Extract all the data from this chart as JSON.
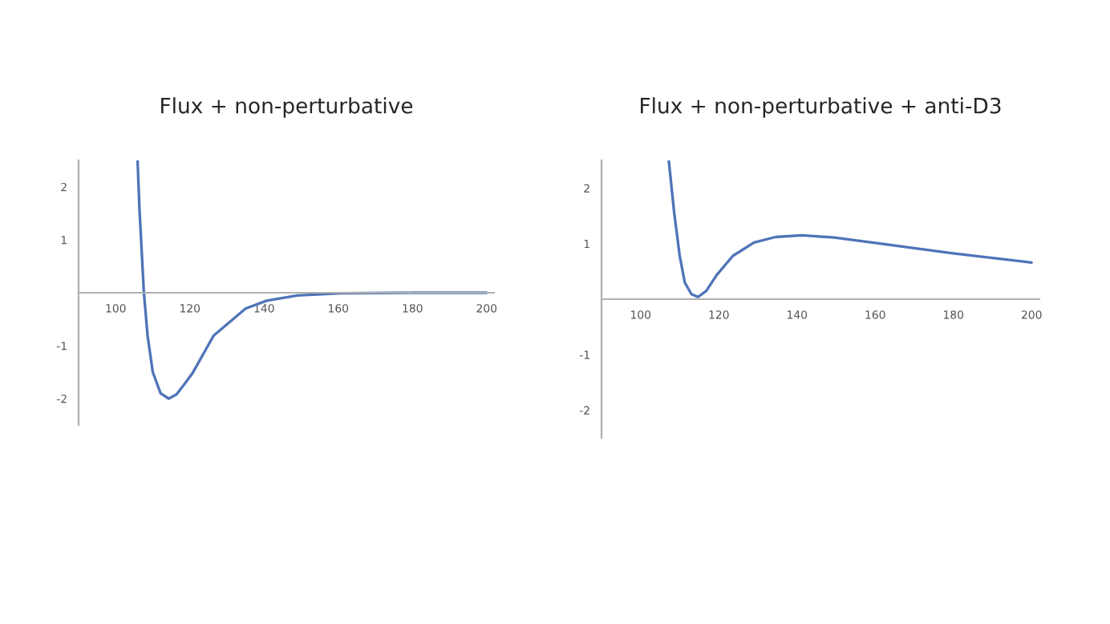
{
  "chart_data": [
    {
      "type": "line",
      "title": "Flux + non-perturbative",
      "xlim": [
        90,
        202
      ],
      "ylim": [
        -2.5,
        2.5
      ],
      "xticks": [
        100,
        120,
        140,
        160,
        180,
        200
      ],
      "yticks": [
        -2,
        -1,
        1,
        2
      ],
      "grid": false,
      "legend": false,
      "series": [
        {
          "color": "#4f74b8",
          "x": [
            105.9,
            106.4,
            107,
            107.6,
            108.6,
            110,
            112.1,
            114.3,
            116.4,
            118.6,
            120.7,
            126.4,
            135,
            140.7,
            149,
            160.7,
            180,
            200
          ],
          "values": [
            2.5,
            1.6,
            0.8,
            0,
            -0.81,
            -1.5,
            -1.9,
            -2,
            -1.92,
            -1.72,
            -1.52,
            -0.81,
            -0.3,
            -0.15,
            -0.05,
            -0.01,
            0,
            0
          ]
        }
      ]
    },
    {
      "type": "line",
      "title": "Flux + non-perturbative + anti-D3",
      "xlim": [
        90,
        202
      ],
      "ylim": [
        -2.5,
        2.5
      ],
      "xticks": [
        100,
        120,
        140,
        160,
        180,
        200
      ],
      "yticks": [
        -2,
        -1,
        1,
        2
      ],
      "grid": false,
      "legend": false,
      "series": [
        {
          "color": "#4f74b8",
          "x": [
            107.2,
            108.6,
            110,
            111.3,
            113,
            114.7,
            116.8,
            119.5,
            123.6,
            129,
            134.5,
            141.3,
            149.5,
            160.4,
            179.5,
            200
          ],
          "values": [
            2.5,
            1.55,
            0.78,
            0.3,
            0.09,
            0.04,
            0.15,
            0.44,
            0.78,
            1.02,
            1.12,
            1.15,
            1.11,
            1.01,
            0.83,
            0.66
          ]
        }
      ]
    }
  ]
}
